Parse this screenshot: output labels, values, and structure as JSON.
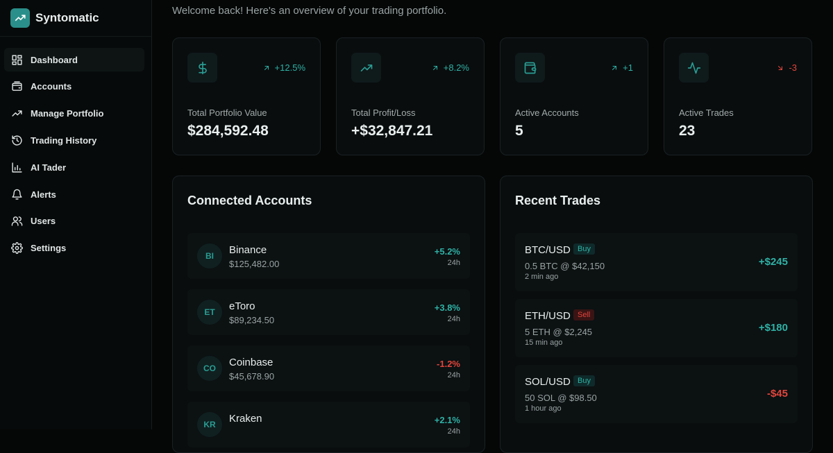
{
  "brand": "Syntomatic",
  "nav": [
    {
      "label": "Dashboard",
      "active": true
    },
    {
      "label": "Accounts"
    },
    {
      "label": "Manage Portfolio"
    },
    {
      "label": "Trading History"
    },
    {
      "label": "AI Tader"
    },
    {
      "label": "Alerts"
    },
    {
      "label": "Users"
    },
    {
      "label": "Settings"
    }
  ],
  "welcome": "Welcome back! Here's an overview of your trading portfolio.",
  "stats": [
    {
      "change": "+12.5%",
      "label": "Total Portfolio Value",
      "value": "$284,592.48"
    },
    {
      "change": "+8.2%",
      "label": "Total Profit/Loss",
      "value": "+$32,847.21"
    },
    {
      "change": "+1",
      "label": "Active Accounts",
      "value": "5"
    },
    {
      "change": "-3",
      "label": "Active Trades",
      "value": "23"
    }
  ],
  "accounts": {
    "title": "Connected Accounts",
    "items": [
      {
        "initials": "BI",
        "name": "Binance",
        "balance": "$125,482.00",
        "change": "+5.2%",
        "period": "24h"
      },
      {
        "initials": "ET",
        "name": "eToro",
        "balance": "$89,234.50",
        "change": "+3.8%",
        "period": "24h"
      },
      {
        "initials": "CO",
        "name": "Coinbase",
        "balance": "$45,678.90",
        "change": "-1.2%",
        "period": "24h"
      },
      {
        "initials": "KR",
        "name": "Kraken",
        "change": "+2.1%",
        "period": "24h"
      }
    ]
  },
  "trades": {
    "title": "Recent Trades",
    "items": [
      {
        "pair": "BTC/USD",
        "side": "Buy",
        "detail": "0.5 BTC @ $42,150",
        "time": "2 min ago",
        "pnl": "+$245"
      },
      {
        "pair": "ETH/USD",
        "side": "Sell",
        "detail": "5 ETH @ $2,245",
        "time": "15 min ago",
        "pnl": "+$180"
      },
      {
        "pair": "SOL/USD",
        "side": "Buy",
        "detail": "50 SOL @ $98.50",
        "time": "1 hour ago",
        "pnl": "-$45"
      }
    ]
  }
}
